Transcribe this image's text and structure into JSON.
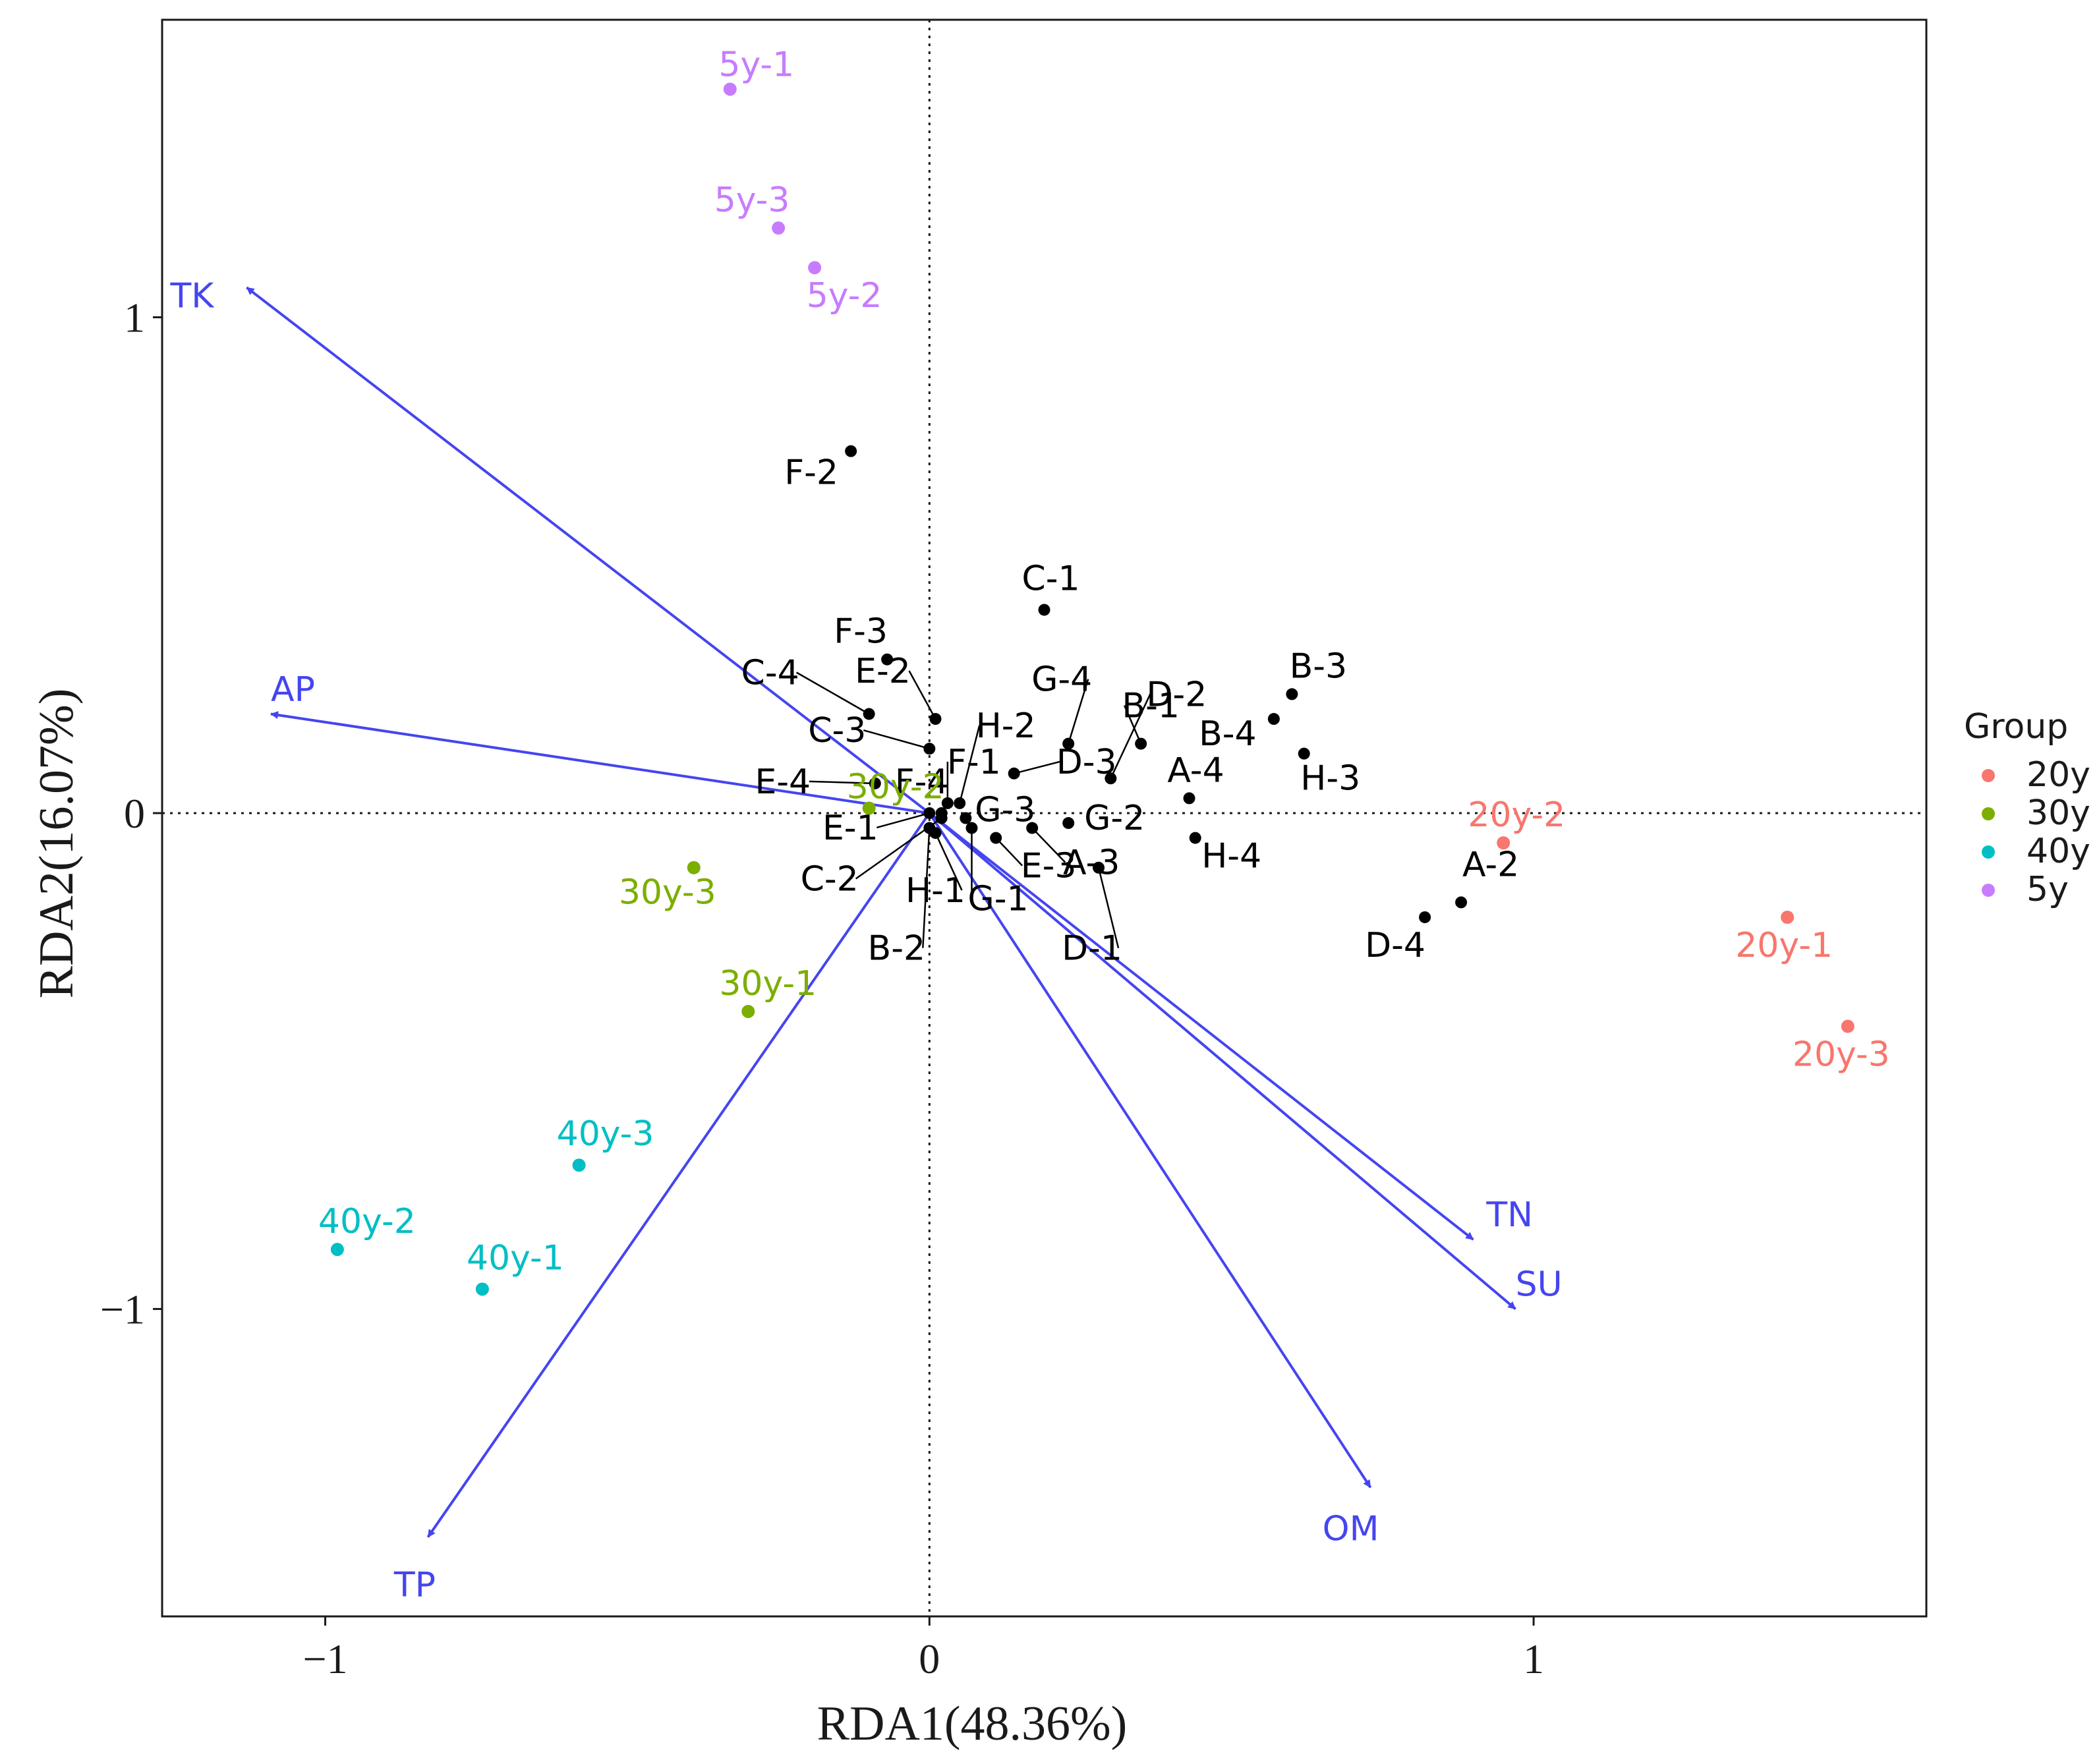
{
  "chart_data": {
    "type": "scatter",
    "subtype": "rda-biplot",
    "xlabel": "RDA1(48.36%)",
    "ylabel": "RDA2(16.07%)",
    "xlim": [
      -1.27,
      1.65
    ],
    "ylim": [
      -1.62,
      1.6
    ],
    "x_ticks": [
      {
        "value": -1,
        "label": "−1"
      },
      {
        "value": 0,
        "label": "0"
      },
      {
        "value": 1,
        "label": "1"
      }
    ],
    "y_ticks": [
      {
        "value": -1,
        "label": "−1"
      },
      {
        "value": 0,
        "label": "0"
      },
      {
        "value": 1,
        "label": "1"
      }
    ],
    "grid": false,
    "reference_lines": "dotted at x=0 and y=0",
    "legend": {
      "title": "Group",
      "placement": "right",
      "entries": [
        {
          "label": "20y",
          "color": "#F8766D"
        },
        {
          "label": "30y",
          "color": "#7CAE00"
        },
        {
          "label": "40y",
          "color": "#00BFC4"
        },
        {
          "label": "5y",
          "color": "#C77CFF"
        }
      ]
    },
    "arrow_color": "#4545F0",
    "species_color": "#000000",
    "env_arrows": [
      {
        "name": "TK",
        "x": -1.13,
        "y": 1.06
      },
      {
        "name": "AP",
        "x": -1.09,
        "y": 0.2
      },
      {
        "name": "TP",
        "x": -0.83,
        "y": -1.46
      },
      {
        "name": "TN",
        "x": 0.9,
        "y": -0.86
      },
      {
        "name": "SU",
        "x": 0.97,
        "y": -1.0
      },
      {
        "name": "OM",
        "x": 0.73,
        "y": -1.36
      }
    ],
    "sites": [
      {
        "label": "20y-1",
        "group": "20y",
        "x": 1.42,
        "y": -0.21
      },
      {
        "label": "20y-2",
        "group": "20y",
        "x": 0.95,
        "y": -0.06
      },
      {
        "label": "20y-3",
        "group": "20y",
        "x": 1.52,
        "y": -0.43
      },
      {
        "label": "30y-1",
        "group": "30y",
        "x": -0.3,
        "y": -0.4
      },
      {
        "label": "30y-2",
        "group": "30y",
        "x": -0.1,
        "y": 0.01
      },
      {
        "label": "30y-3",
        "group": "30y",
        "x": -0.39,
        "y": -0.11
      },
      {
        "label": "40y-1",
        "group": "40y",
        "x": -0.74,
        "y": -0.96
      },
      {
        "label": "40y-2",
        "group": "40y",
        "x": -0.98,
        "y": -0.88
      },
      {
        "label": "40y-3",
        "group": "40y",
        "x": -0.58,
        "y": -0.71
      },
      {
        "label": "5y-1",
        "group": "5y",
        "x": -0.33,
        "y": 1.46
      },
      {
        "label": "5y-2",
        "group": "5y",
        "x": -0.19,
        "y": 1.1
      },
      {
        "label": "5y-3",
        "group": "5y",
        "x": -0.25,
        "y": 1.18
      }
    ],
    "species": [
      {
        "label": "F-2",
        "x": -0.13,
        "y": 0.73
      },
      {
        "label": "C-1",
        "x": 0.19,
        "y": 0.41
      },
      {
        "label": "F-3",
        "x": -0.07,
        "y": 0.31
      },
      {
        "label": "C-4",
        "x": -0.1,
        "y": 0.2
      },
      {
        "label": "E-2",
        "x": 0.01,
        "y": 0.19
      },
      {
        "label": "F-1",
        "x": 0.03,
        "y": 0.02
      },
      {
        "label": "C-3",
        "x": 0.0,
        "y": 0.13
      },
      {
        "label": "G-4",
        "x": 0.23,
        "y": 0.14
      },
      {
        "label": "D-2",
        "x": 0.3,
        "y": 0.07
      },
      {
        "label": "B-3",
        "x": 0.6,
        "y": 0.24
      },
      {
        "label": "B-4",
        "x": 0.57,
        "y": 0.19
      },
      {
        "label": "H-3",
        "x": 0.62,
        "y": 0.12
      },
      {
        "label": "B-1",
        "x": 0.35,
        "y": 0.14
      },
      {
        "label": "H-2",
        "x": 0.05,
        "y": 0.02
      },
      {
        "label": "D-3",
        "x": 0.14,
        "y": 0.08
      },
      {
        "label": "A-4",
        "x": 0.43,
        "y": 0.03
      },
      {
        "label": "E-4",
        "x": -0.09,
        "y": 0.06
      },
      {
        "label": "F-4",
        "x": 0.02,
        "y": 0.0
      },
      {
        "label": "G-3",
        "x": 0.06,
        "y": -0.01
      },
      {
        "label": "G-2",
        "x": 0.23,
        "y": -0.02
      },
      {
        "label": "E-1",
        "x": 0.0,
        "y": 0.0
      },
      {
        "label": "H-4",
        "x": 0.44,
        "y": -0.05
      },
      {
        "label": "C-2",
        "x": 0.02,
        "y": -0.01
      },
      {
        "label": "H-1",
        "x": 0.01,
        "y": -0.04
      },
      {
        "label": "E-3",
        "x": 0.11,
        "y": -0.05
      },
      {
        "label": "A-3",
        "x": 0.17,
        "y": -0.03
      },
      {
        "label": "B-2",
        "x": 0.0,
        "y": -0.03
      },
      {
        "label": "G-1",
        "x": 0.07,
        "y": -0.03
      },
      {
        "label": "D-1",
        "x": 0.28,
        "y": -0.11
      },
      {
        "label": "A-2",
        "x": 0.88,
        "y": -0.18
      },
      {
        "label": "D-4",
        "x": 0.82,
        "y": -0.21
      }
    ]
  }
}
